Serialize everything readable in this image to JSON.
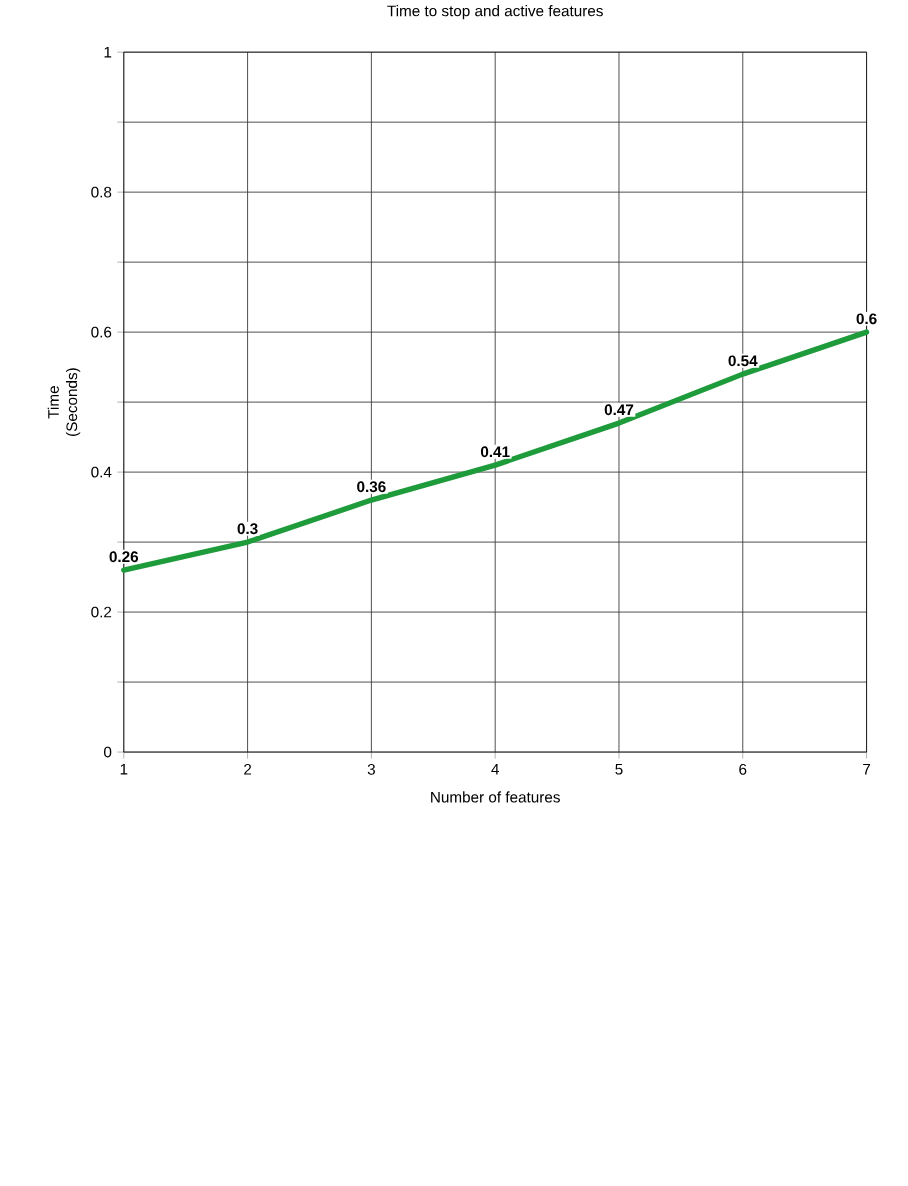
{
  "chart_data": {
    "type": "line",
    "title": "Time to stop and active features",
    "xlabel": "Number of features",
    "ylabel": "Time (Seconds)",
    "x": [
      1,
      2,
      3,
      4,
      5,
      6,
      7
    ],
    "series": [
      {
        "color": "#1e9b3a",
        "values": [
          0.26,
          0.3,
          0.36,
          0.41,
          0.47,
          0.54,
          0.6
        ]
      }
    ],
    "xlim": [
      1,
      7
    ],
    "xticks": [
      1,
      2,
      3,
      4,
      5,
      6,
      7
    ],
    "ylim": [
      0,
      1
    ],
    "yticks": [
      0,
      {
        "value": 0.1,
        "label": null
      },
      0.2,
      {
        "value": 0.3,
        "label": null
      },
      0.4,
      {
        "value": 0.5,
        "label": null
      },
      0.6,
      {
        "value": 0.7,
        "label": null
      },
      0.8,
      {
        "value": 0.9,
        "label": null
      },
      1
    ],
    "grid": true,
    "data_labels": true,
    "marker": "none",
    "line_style": "solid"
  }
}
